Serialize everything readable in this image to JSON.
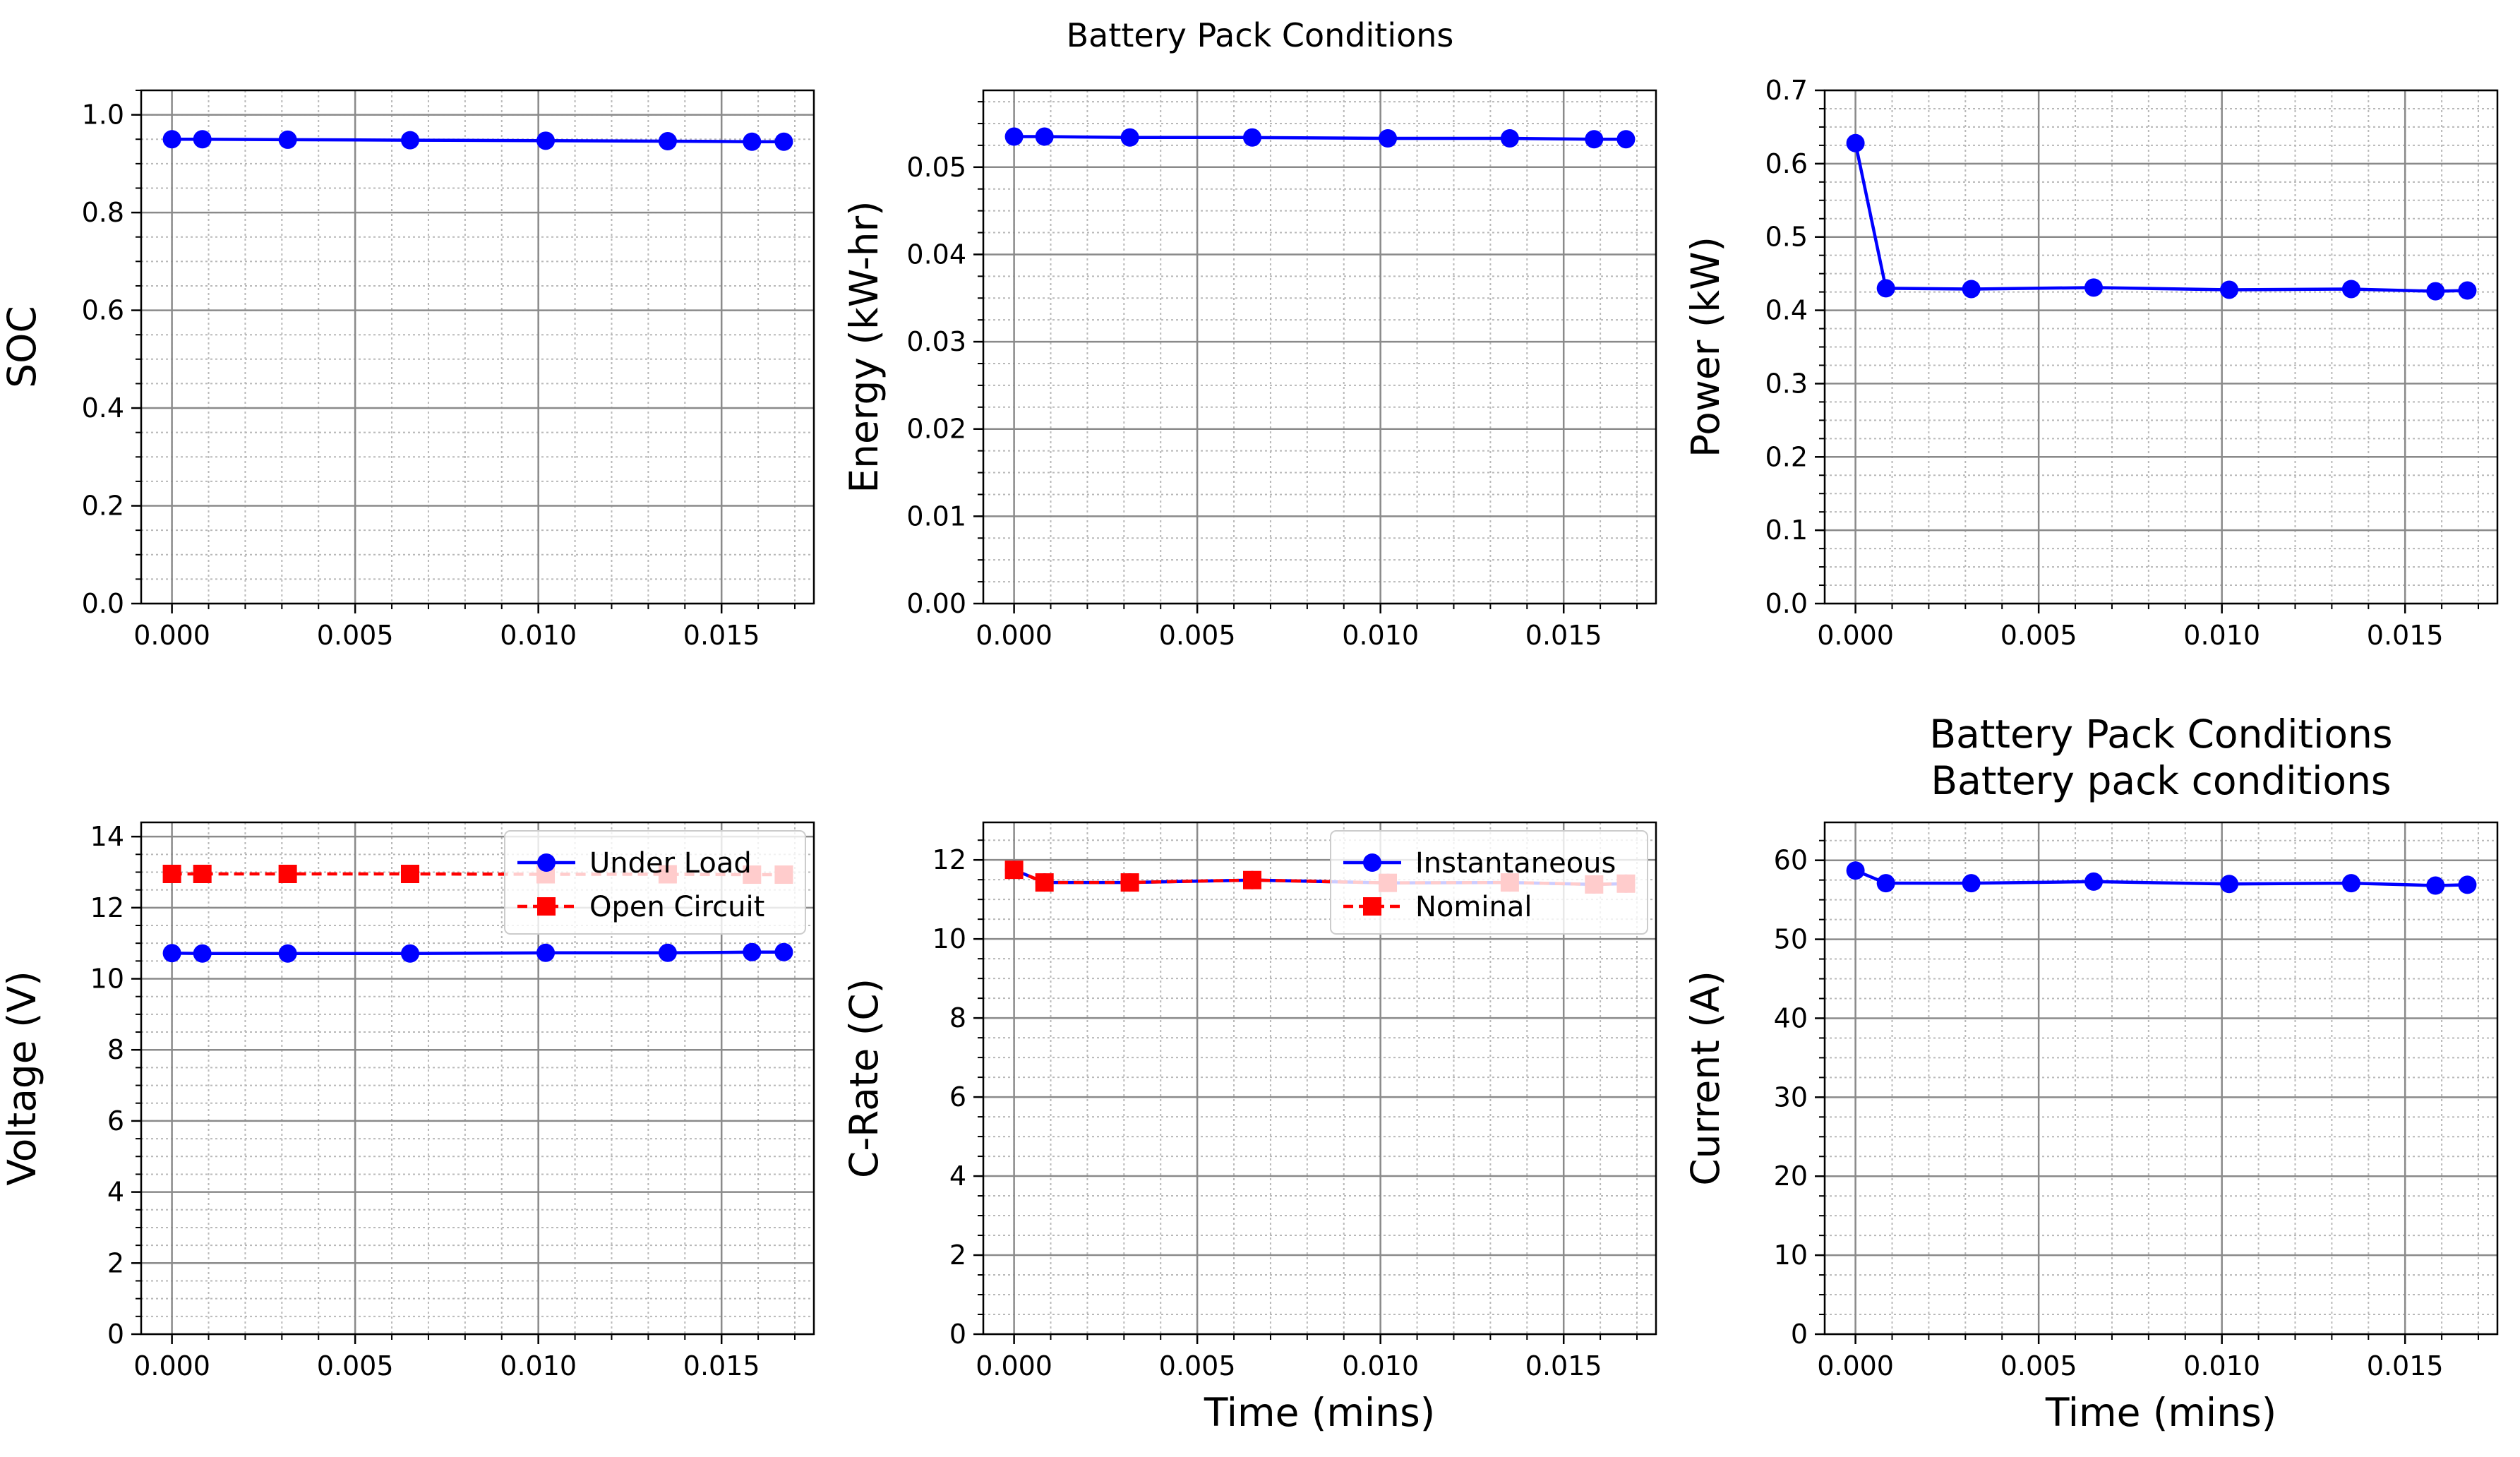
{
  "figure_title": "Battery Pack Conditions",
  "chart_data": [
    {
      "id": "soc",
      "type": "line",
      "title": "",
      "xlabel": "",
      "ylabel": "SOC",
      "xlim": [
        -0.00084,
        0.01752
      ],
      "ylim": [
        0,
        1.05
      ],
      "xticks": [
        0.0,
        0.005,
        0.01,
        0.015
      ],
      "xtick_labels": [
        "0.000",
        "0.005",
        "0.010",
        "0.015"
      ],
      "yticks": [
        0.0,
        0.2,
        0.4,
        0.6,
        0.8,
        1.0
      ],
      "ytick_labels": [
        "0.0",
        "0.2",
        "0.4",
        "0.6",
        "0.8",
        "1.0"
      ],
      "minor_x_step": 0.001,
      "minor_y_step": 0.05,
      "grid": true,
      "legend": null,
      "series": [
        {
          "color": "#0000ff",
          "marker": "circle",
          "linestyle": "solid",
          "x": [
            0.0,
            0.00083,
            0.00316,
            0.0065,
            0.0102,
            0.01353,
            0.01583,
            0.0167
          ],
          "y": [
            0.95,
            0.95,
            0.949,
            0.948,
            0.947,
            0.946,
            0.945,
            0.945
          ]
        }
      ]
    },
    {
      "id": "energy",
      "type": "line",
      "title": "",
      "xlabel": "",
      "ylabel": "Energy (kW-hr)",
      "xlim": [
        -0.00084,
        0.01752
      ],
      "ylim": [
        0,
        0.0588
      ],
      "xticks": [
        0.0,
        0.005,
        0.01,
        0.015
      ],
      "xtick_labels": [
        "0.000",
        "0.005",
        "0.010",
        "0.015"
      ],
      "yticks": [
        0.0,
        0.01,
        0.02,
        0.03,
        0.04,
        0.05
      ],
      "ytick_labels": [
        "0.00",
        "0.01",
        "0.02",
        "0.03",
        "0.04",
        "0.05"
      ],
      "minor_x_step": 0.001,
      "minor_y_step": 0.0025,
      "grid": true,
      "legend": null,
      "series": [
        {
          "color": "#0000ff",
          "marker": "circle",
          "linestyle": "solid",
          "x": [
            0.0,
            0.00083,
            0.00316,
            0.0065,
            0.0102,
            0.01353,
            0.01583,
            0.0167
          ],
          "y": [
            0.0535,
            0.0535,
            0.0534,
            0.0534,
            0.0533,
            0.0533,
            0.0532,
            0.0532
          ]
        }
      ]
    },
    {
      "id": "power",
      "type": "line",
      "title": "",
      "xlabel": "",
      "ylabel": "Power (kW)",
      "xlim": [
        -0.00084,
        0.01752
      ],
      "ylim": [
        0,
        0.7
      ],
      "xticks": [
        0.0,
        0.005,
        0.01,
        0.015
      ],
      "xtick_labels": [
        "0.000",
        "0.005",
        "0.010",
        "0.015"
      ],
      "yticks": [
        0.0,
        0.1,
        0.2,
        0.3,
        0.4,
        0.5,
        0.6,
        0.7
      ],
      "ytick_labels": [
        "0.0",
        "0.1",
        "0.2",
        "0.3",
        "0.4",
        "0.5",
        "0.6",
        "0.7"
      ],
      "minor_x_step": 0.001,
      "minor_y_step": 0.025,
      "grid": true,
      "legend": null,
      "series": [
        {
          "color": "#0000ff",
          "marker": "circle",
          "linestyle": "solid",
          "x": [
            0.0,
            0.00083,
            0.00316,
            0.0065,
            0.0102,
            0.01353,
            0.01583,
            0.0167
          ],
          "y": [
            0.628,
            0.43,
            0.429,
            0.431,
            0.428,
            0.429,
            0.426,
            0.427
          ]
        }
      ]
    },
    {
      "id": "voltage",
      "type": "line",
      "title": "",
      "xlabel": "",
      "ylabel": "Voltage (V)",
      "xlim": [
        -0.00084,
        0.01752
      ],
      "ylim": [
        0,
        14.4
      ],
      "xticks": [
        0.0,
        0.005,
        0.01,
        0.015
      ],
      "xtick_labels": [
        "0.000",
        "0.005",
        "0.010",
        "0.015"
      ],
      "yticks": [
        0,
        2,
        4,
        6,
        8,
        10,
        12,
        14
      ],
      "ytick_labels": [
        "0",
        "2",
        "4",
        "6",
        "8",
        "10",
        "12",
        "14"
      ],
      "minor_x_step": 0.001,
      "minor_y_step": 0.5,
      "grid": true,
      "legend": "upper right",
      "series": [
        {
          "name": "Under Load",
          "color": "#0000ff",
          "marker": "circle",
          "linestyle": "solid",
          "x": [
            0.0,
            0.00083,
            0.00316,
            0.0065,
            0.0102,
            0.01353,
            0.01583,
            0.0167
          ],
          "y": [
            10.72,
            10.71,
            10.71,
            10.71,
            10.73,
            10.73,
            10.75,
            10.75
          ]
        },
        {
          "name": "Open Circuit",
          "color": "#ff0000",
          "marker": "square",
          "linestyle": "dashed",
          "x": [
            0.0,
            0.00083,
            0.00316,
            0.0065,
            0.0102,
            0.01353,
            0.01583,
            0.0167
          ],
          "y": [
            12.95,
            12.95,
            12.95,
            12.95,
            12.94,
            12.94,
            12.93,
            12.93
          ]
        }
      ]
    },
    {
      "id": "crate",
      "type": "line",
      "title": "",
      "xlabel": "Time (mins)",
      "ylabel": "C-Rate (C)",
      "xlim": [
        -0.00084,
        0.01752
      ],
      "ylim": [
        0,
        12.95
      ],
      "xticks": [
        0.0,
        0.005,
        0.01,
        0.015
      ],
      "xtick_labels": [
        "0.000",
        "0.005",
        "0.010",
        "0.015"
      ],
      "yticks": [
        0,
        2,
        4,
        6,
        8,
        10,
        12
      ],
      "ytick_labels": [
        "0",
        "2",
        "4",
        "6",
        "8",
        "10",
        "12"
      ],
      "minor_x_step": 0.001,
      "minor_y_step": 0.5,
      "grid": true,
      "legend": "upper right",
      "series": [
        {
          "name": "Instantaneous",
          "color": "#0000ff",
          "marker": "circle",
          "linestyle": "solid",
          "x": [
            0.0,
            0.00083,
            0.00316,
            0.0065,
            0.0102,
            0.01353,
            0.01583,
            0.0167
          ],
          "y": [
            11.75,
            11.43,
            11.43,
            11.49,
            11.42,
            11.43,
            11.38,
            11.4
          ]
        },
        {
          "name": "Nominal",
          "color": "#ff0000",
          "marker": "square",
          "linestyle": "dashed",
          "x": [
            0.0,
            0.00083,
            0.00316,
            0.0065,
            0.0102,
            0.01353,
            0.01583,
            0.0167
          ],
          "y": [
            11.75,
            11.43,
            11.43,
            11.49,
            11.42,
            11.43,
            11.38,
            11.4
          ]
        }
      ]
    },
    {
      "id": "current",
      "type": "line",
      "title": "Battery Pack Conditions\nBattery pack conditions",
      "xlabel": "Time (mins)",
      "ylabel": "Current (A)",
      "xlim": [
        -0.00084,
        0.01752
      ],
      "ylim": [
        0,
        64.8
      ],
      "xticks": [
        0.0,
        0.005,
        0.01,
        0.015
      ],
      "xtick_labels": [
        "0.000",
        "0.005",
        "0.010",
        "0.015"
      ],
      "yticks": [
        0,
        10,
        20,
        30,
        40,
        50,
        60
      ],
      "ytick_labels": [
        "0",
        "10",
        "20",
        "30",
        "40",
        "50",
        "60"
      ],
      "minor_x_step": 0.001,
      "minor_y_step": 2.5,
      "grid": true,
      "legend": null,
      "series": [
        {
          "color": "#0000ff",
          "marker": "circle",
          "linestyle": "solid",
          "x": [
            0.0,
            0.00083,
            0.00316,
            0.0065,
            0.0102,
            0.01353,
            0.01583,
            0.0167
          ],
          "y": [
            58.7,
            57.1,
            57.1,
            57.3,
            57.0,
            57.1,
            56.8,
            56.9
          ]
        }
      ]
    }
  ]
}
